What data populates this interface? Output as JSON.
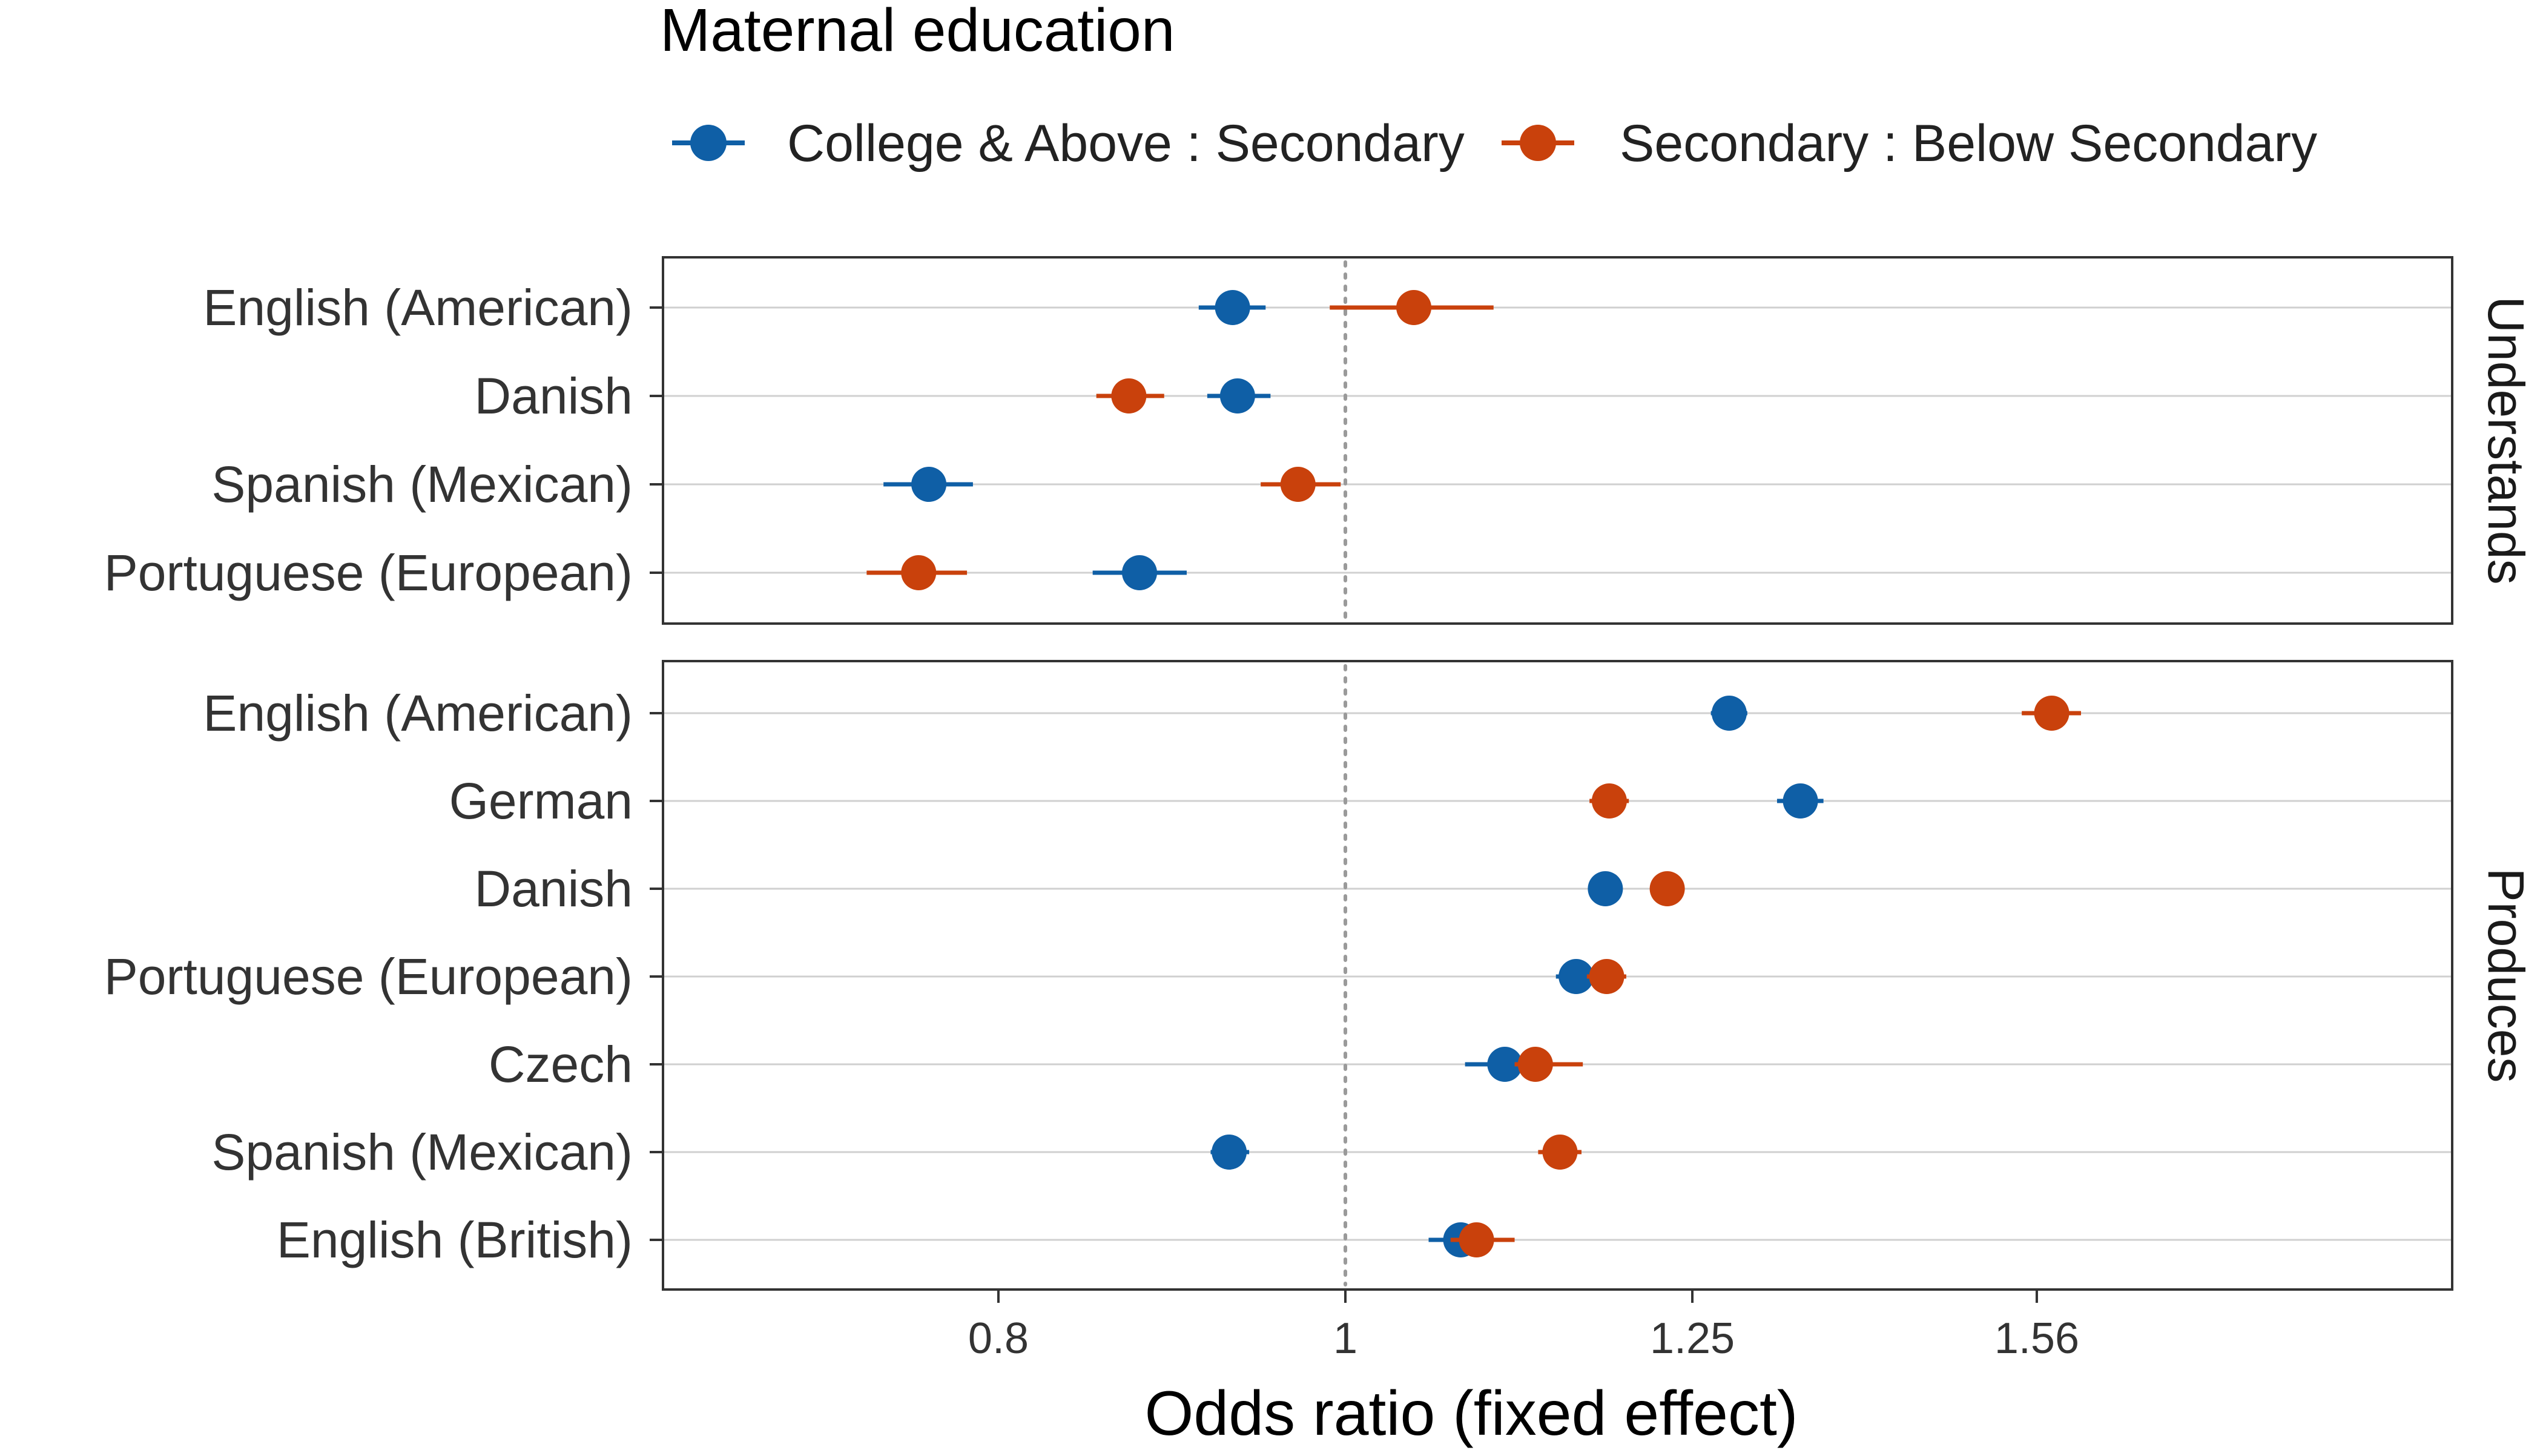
{
  "chart_data": {
    "type": "forest",
    "legend": {
      "title": "Maternal education",
      "placement": "top",
      "series": [
        {
          "name": "College & Above : Secondary",
          "color": "#0f5fa6"
        },
        {
          "name": "Secondary : Below Secondary",
          "color": "#c9410c"
        }
      ]
    },
    "xlabel": "Odds ratio (fixed effect)",
    "x_scale": "log",
    "xlim": [
      0.7,
      1.65
    ],
    "x_ticks": [
      {
        "value": 0.8,
        "label": "0.8"
      },
      {
        "value": 1,
        "label": "1"
      },
      {
        "value": 1.25,
        "label": "1.25"
      },
      {
        "value": 1.56,
        "label": "1.56"
      }
    ],
    "reference_line": 1,
    "grid": true,
    "panels": [
      {
        "strip_label": "Understands",
        "rows": [
          {
            "label": "English (American)",
            "points": [
              {
                "series": 0,
                "value": 0.93,
                "low": 0.91,
                "high": 0.95
              },
              {
                "series": 1,
                "value": 1.045,
                "low": 0.99,
                "high": 1.1
              }
            ]
          },
          {
            "label": "Danish",
            "points": [
              {
                "series": 0,
                "value": 0.933,
                "low": 0.915,
                "high": 0.953
              },
              {
                "series": 1,
                "value": 0.87,
                "low": 0.852,
                "high": 0.89
              }
            ]
          },
          {
            "label": "Spanish (Mexican)",
            "points": [
              {
                "series": 0,
                "value": 0.765,
                "low": 0.743,
                "high": 0.787
              },
              {
                "series": 1,
                "value": 0.97,
                "low": 0.947,
                "high": 0.997
              }
            ]
          },
          {
            "label": "Portuguese (European)",
            "points": [
              {
                "series": 0,
                "value": 0.876,
                "low": 0.85,
                "high": 0.903
              },
              {
                "series": 1,
                "value": 0.76,
                "low": 0.735,
                "high": 0.784
              }
            ]
          }
        ]
      },
      {
        "strip_label": "Produces",
        "rows": [
          {
            "label": "English (American)",
            "points": [
              {
                "series": 0,
                "value": 1.28,
                "low": 1.265,
                "high": 1.295
              },
              {
                "series": 1,
                "value": 1.575,
                "low": 1.545,
                "high": 1.605
              }
            ]
          },
          {
            "label": "German",
            "points": [
              {
                "series": 0,
                "value": 1.34,
                "low": 1.32,
                "high": 1.36
              },
              {
                "series": 1,
                "value": 1.185,
                "low": 1.17,
                "high": 1.2
              }
            ]
          },
          {
            "label": "Danish",
            "points": [
              {
                "series": 0,
                "value": 1.182,
                "low": 1.172,
                "high": 1.192
              },
              {
                "series": 1,
                "value": 1.23,
                "low": 1.22,
                "high": 1.24
              }
            ]
          },
          {
            "label": "Portuguese (European)",
            "points": [
              {
                "series": 0,
                "value": 1.16,
                "low": 1.145,
                "high": 1.175
              },
              {
                "series": 1,
                "value": 1.183,
                "low": 1.168,
                "high": 1.198
              }
            ]
          },
          {
            "label": "Czech",
            "points": [
              {
                "series": 0,
                "value": 1.108,
                "low": 1.08,
                "high": 1.133
              },
              {
                "series": 1,
                "value": 1.13,
                "low": 1.115,
                "high": 1.165
              }
            ]
          },
          {
            "label": "Spanish (Mexican)",
            "points": [
              {
                "series": 0,
                "value": 0.928,
                "low": 0.917,
                "high": 0.94
              },
              {
                "series": 1,
                "value": 1.148,
                "low": 1.132,
                "high": 1.164
              }
            ]
          },
          {
            "label": "English (British)",
            "points": [
              {
                "series": 0,
                "value": 1.077,
                "low": 1.055,
                "high": 1.1
              },
              {
                "series": 1,
                "value": 1.088,
                "low": 1.07,
                "high": 1.115
              }
            ]
          }
        ]
      }
    ]
  }
}
